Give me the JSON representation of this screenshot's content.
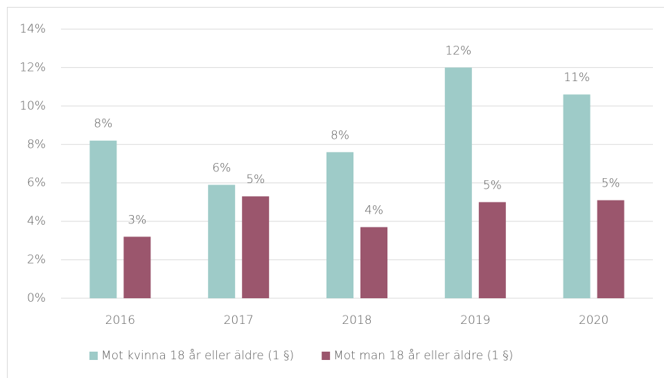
{
  "chart_data": {
    "type": "bar",
    "categories": [
      "2016",
      "2017",
      "2018",
      "2019",
      "2020"
    ],
    "series": [
      {
        "name": "Mot kvinna 18 år eller äldre (1 §)",
        "color": "#9ecbc8",
        "values": [
          8.2,
          5.9,
          7.6,
          12.0,
          10.6
        ],
        "value_labels": [
          "8%",
          "6%",
          "8%",
          "12%",
          "11%"
        ]
      },
      {
        "name": "Mot man 18 år eller äldre (1 §)",
        "color": "#9b566d",
        "values": [
          3.2,
          5.3,
          3.7,
          5.0,
          5.1
        ],
        "value_labels": [
          "3%",
          "5%",
          "4%",
          "5%",
          "5%"
        ]
      }
    ],
    "ylim": [
      0,
      14
    ],
    "yticks": [
      {
        "value": 0,
        "label": "0%"
      },
      {
        "value": 2,
        "label": "2%"
      },
      {
        "value": 4,
        "label": "4%"
      },
      {
        "value": 6,
        "label": "6%"
      },
      {
        "value": 8,
        "label": "8%"
      },
      {
        "value": 10,
        "label": "10%"
      },
      {
        "value": 12,
        "label": "12%"
      },
      {
        "value": 14,
        "label": "14%"
      }
    ],
    "grid": true,
    "legend": "bottom"
  }
}
